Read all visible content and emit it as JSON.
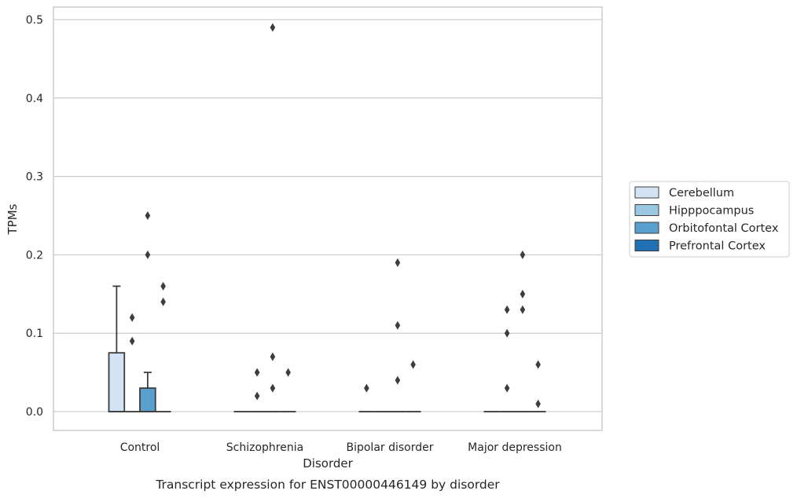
{
  "chart_data": {
    "type": "box",
    "caption": "Transcript expression for ENST00000446149 by disorder",
    "xlabel": "Disorder",
    "ylabel": "TPMs",
    "ylim": [
      -0.024,
      0.516
    ],
    "yticks": [
      0.0,
      0.1,
      0.2,
      0.3,
      0.4,
      0.5
    ],
    "ytick_labels": [
      "0.0",
      "0.1",
      "0.2",
      "0.3",
      "0.4",
      "0.5"
    ],
    "categories": [
      "Control",
      "Schizophrenia",
      "Bipolar disorder",
      "Major depression"
    ],
    "grid": true,
    "legend_position": "right",
    "series": [
      {
        "name": "Cerebellum",
        "color": "#d2e3f3",
        "boxes": [
          {
            "q1": 0.0,
            "median": 0.0,
            "q3": 0.075,
            "whisker_low": 0.0,
            "whisker_high": 0.16,
            "outliers": []
          },
          {
            "q1": 0.0,
            "median": 0.0,
            "q3": 0.0,
            "whisker_low": 0.0,
            "whisker_high": 0.0,
            "outliers": []
          },
          {
            "q1": 0.0,
            "median": 0.0,
            "q3": 0.0,
            "whisker_low": 0.0,
            "whisker_high": 0.0,
            "outliers": [
              0.03
            ]
          },
          {
            "q1": 0.0,
            "median": 0.0,
            "q3": 0.0,
            "whisker_low": 0.0,
            "whisker_high": 0.0,
            "outliers": []
          }
        ]
      },
      {
        "name": "Hipppocampus",
        "color": "#9ac8e0",
        "boxes": [
          {
            "q1": 0.0,
            "median": 0.0,
            "q3": 0.0,
            "whisker_low": 0.0,
            "whisker_high": 0.0,
            "outliers": [
              0.09,
              0.12
            ]
          },
          {
            "q1": 0.0,
            "median": 0.0,
            "q3": 0.0,
            "whisker_low": 0.0,
            "whisker_high": 0.0,
            "outliers": [
              0.02,
              0.05
            ]
          },
          {
            "q1": 0.0,
            "median": 0.0,
            "q3": 0.0,
            "whisker_low": 0.0,
            "whisker_high": 0.0,
            "outliers": []
          },
          {
            "q1": 0.0,
            "median": 0.0,
            "q3": 0.0,
            "whisker_low": 0.0,
            "whisker_high": 0.0,
            "outliers": [
              0.03,
              0.1,
              0.13
            ]
          }
        ]
      },
      {
        "name": "Orbitofontal Cortex",
        "color": "#5aa0ce",
        "boxes": [
          {
            "q1": 0.0,
            "median": 0.0,
            "q3": 0.03,
            "whisker_low": 0.0,
            "whisker_high": 0.05,
            "outliers": [
              0.2,
              0.25
            ]
          },
          {
            "q1": 0.0,
            "median": 0.0,
            "q3": 0.0,
            "whisker_low": 0.0,
            "whisker_high": 0.0,
            "outliers": [
              0.03,
              0.07,
              0.49
            ]
          },
          {
            "q1": 0.0,
            "median": 0.0,
            "q3": 0.0,
            "whisker_low": 0.0,
            "whisker_high": 0.0,
            "outliers": [
              0.04,
              0.11,
              0.19
            ]
          },
          {
            "q1": 0.0,
            "median": 0.0,
            "q3": 0.0,
            "whisker_low": 0.0,
            "whisker_high": 0.0,
            "outliers": [
              0.13,
              0.15,
              0.2
            ]
          }
        ]
      },
      {
        "name": "Prefrontal Cortex",
        "color": "#2070b4",
        "boxes": [
          {
            "q1": 0.0,
            "median": 0.0,
            "q3": 0.0,
            "whisker_low": 0.0,
            "whisker_high": 0.0,
            "outliers": [
              0.14,
              0.16
            ]
          },
          {
            "q1": 0.0,
            "median": 0.0,
            "q3": 0.0,
            "whisker_low": 0.0,
            "whisker_high": 0.0,
            "outliers": [
              0.05
            ]
          },
          {
            "q1": 0.0,
            "median": 0.0,
            "q3": 0.0,
            "whisker_low": 0.0,
            "whisker_high": 0.0,
            "outliers": [
              0.06
            ]
          },
          {
            "q1": 0.0,
            "median": 0.0,
            "q3": 0.0,
            "whisker_low": 0.0,
            "whisker_high": 0.0,
            "outliers": [
              0.01,
              0.06
            ]
          }
        ]
      }
    ]
  },
  "style": {
    "grid_color": "#cccccc",
    "axis_frame_color": "#cccccc",
    "box_edge_color": "#3d3d3d",
    "outlier_color": "#3d3d3d",
    "legend_frame_color": "#cccccc"
  }
}
